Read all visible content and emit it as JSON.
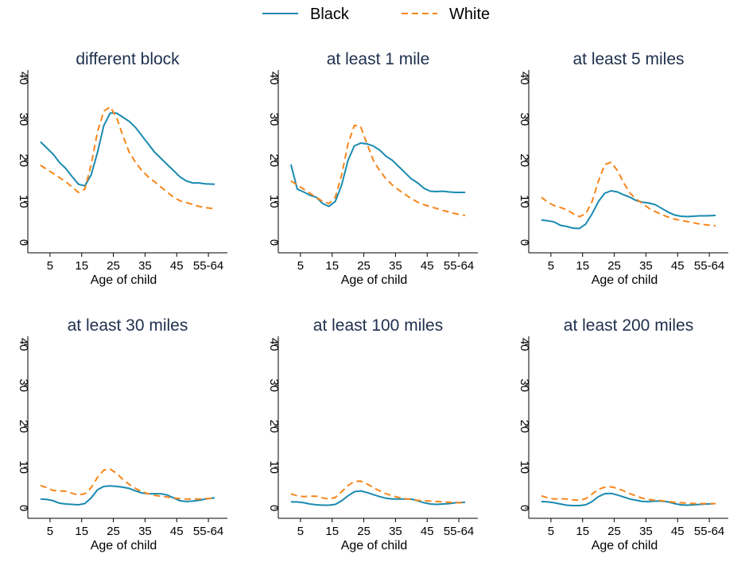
{
  "legend": [
    {
      "name": "Black",
      "color": "#1a8ab0",
      "dashed": false
    },
    {
      "name": "White",
      "color": "#f7861b",
      "dashed": true
    }
  ],
  "chart_data": [
    {
      "type": "line",
      "title": "different block",
      "xlabel": "Age of child",
      "x": [
        2,
        4,
        6,
        8,
        10,
        12,
        14,
        16,
        18,
        20,
        22,
        24,
        26,
        28,
        30,
        32,
        34,
        36,
        38,
        40,
        42,
        44,
        46,
        48,
        50,
        52,
        54,
        57
      ],
      "xlim": [
        -2,
        61
      ],
      "xticks": [
        5,
        15,
        25,
        35,
        45,
        {
          "value": 55,
          "label": "55-64"
        }
      ],
      "ylim": [
        -2.5,
        42
      ],
      "yticks": [
        0,
        10,
        20,
        30,
        40
      ],
      "series": [
        {
          "values": [
            24.5,
            23,
            21.5,
            19.5,
            18,
            16,
            14.2,
            13.8,
            16.5,
            22,
            28.5,
            31.5,
            31.5,
            30.5,
            29.5,
            28,
            26,
            24,
            22,
            20.5,
            19,
            17.5,
            16,
            15,
            14.5,
            14.5,
            14.3,
            14.2
          ]
        },
        {
          "values": [
            18.8,
            17.8,
            16.8,
            15.8,
            14.8,
            13.5,
            12.2,
            13,
            19,
            27,
            32,
            33,
            30.5,
            26,
            22,
            19.5,
            17.5,
            16,
            14.8,
            13.5,
            12.3,
            11,
            10.2,
            9.7,
            9.3,
            8.8,
            8.5,
            8.2
          ]
        }
      ]
    },
    {
      "type": "line",
      "title": "at least 1 mile",
      "xlabel": "Age of child",
      "x": [
        2,
        4,
        6,
        8,
        10,
        12,
        14,
        16,
        18,
        20,
        22,
        24,
        26,
        28,
        30,
        32,
        34,
        36,
        38,
        40,
        42,
        44,
        46,
        48,
        50,
        52,
        54,
        57
      ],
      "xlim": [
        -2,
        61
      ],
      "xticks": [
        5,
        15,
        25,
        35,
        45,
        {
          "value": 55,
          "label": "55-64"
        }
      ],
      "ylim": [
        -2.5,
        42
      ],
      "yticks": [
        0,
        10,
        20,
        30,
        40
      ],
      "series": [
        {
          "values": [
            19,
            13,
            12.3,
            11.5,
            11,
            9.5,
            8.8,
            10,
            14,
            20,
            23.5,
            24.2,
            24,
            23.5,
            22.5,
            21,
            20,
            18.5,
            17,
            15.5,
            14.5,
            13.2,
            12.5,
            12.4,
            12.5,
            12.3,
            12.2,
            12.2
          ]
        },
        {
          "values": [
            15,
            14,
            13,
            12,
            11,
            10,
            9.5,
            11,
            16.5,
            24,
            28.5,
            28.2,
            24,
            20,
            17.5,
            15.5,
            14,
            12.8,
            11.7,
            10.7,
            9.8,
            9.2,
            8.7,
            8.3,
            7.8,
            7.4,
            7,
            6.6
          ]
        }
      ]
    },
    {
      "type": "line",
      "title": "at least 5 miles",
      "xlabel": "Age of child",
      "x": [
        2,
        4,
        6,
        8,
        10,
        12,
        14,
        16,
        18,
        20,
        22,
        24,
        26,
        28,
        30,
        32,
        34,
        36,
        38,
        40,
        42,
        44,
        46,
        48,
        50,
        52,
        54,
        57
      ],
      "xlim": [
        -2,
        61
      ],
      "xticks": [
        5,
        15,
        25,
        35,
        45,
        {
          "value": 55,
          "label": "55-64"
        }
      ],
      "ylim": [
        -2.5,
        42
      ],
      "yticks": [
        0,
        10,
        20,
        30,
        40
      ],
      "series": [
        {
          "values": [
            5.5,
            5.3,
            5,
            4.2,
            3.9,
            3.5,
            3.4,
            4.5,
            7,
            10,
            12,
            12.6,
            12.3,
            11.6,
            11,
            10.2,
            9.8,
            9.6,
            9.2,
            8.3,
            7.4,
            6.7,
            6.4,
            6.3,
            6.4,
            6.5,
            6.5,
            6.6
          ]
        },
        {
          "values": [
            11,
            9.8,
            9,
            8.5,
            8,
            7,
            6.3,
            7,
            10,
            15,
            19,
            19.5,
            17.5,
            14.5,
            12,
            10.5,
            9.5,
            8.3,
            7.5,
            6.8,
            6.2,
            5.7,
            5.4,
            5.1,
            4.8,
            4.5,
            4.3,
            4.1
          ]
        }
      ]
    },
    {
      "type": "line",
      "title": "at least 30 miles",
      "xlabel": "Age of child",
      "x": [
        2,
        4,
        6,
        8,
        10,
        12,
        14,
        16,
        18,
        20,
        22,
        24,
        26,
        28,
        30,
        32,
        34,
        36,
        38,
        40,
        42,
        44,
        46,
        48,
        50,
        52,
        54,
        57
      ],
      "xlim": [
        -2,
        61
      ],
      "xticks": [
        5,
        15,
        25,
        35,
        45,
        {
          "value": 55,
          "label": "55-64"
        }
      ],
      "ylim": [
        -2.5,
        42
      ],
      "yticks": [
        0,
        10,
        20,
        30,
        40
      ],
      "series": [
        {
          "values": [
            2.2,
            2.1,
            1.8,
            1.2,
            1,
            0.9,
            0.8,
            1.1,
            2.5,
            4.5,
            5.3,
            5.4,
            5.3,
            5.1,
            4.8,
            4.2,
            3.7,
            3.5,
            3.5,
            3.5,
            3.2,
            2.5,
            1.8,
            1.6,
            1.7,
            1.9,
            2.2,
            2.5
          ]
        },
        {
          "values": [
            5.5,
            5,
            4.3,
            4.2,
            4.1,
            3.6,
            3.2,
            3.5,
            5,
            7.5,
            9.3,
            9.5,
            8.5,
            7,
            5.8,
            4.8,
            4,
            3.5,
            3.1,
            2.9,
            2.7,
            2.5,
            2.3,
            2.2,
            2.2,
            2.2,
            2.3,
            2.4
          ]
        }
      ]
    },
    {
      "type": "line",
      "title": "at least 100 miles",
      "xlabel": "Age of child",
      "x": [
        2,
        4,
        6,
        8,
        10,
        12,
        14,
        16,
        18,
        20,
        22,
        24,
        26,
        28,
        30,
        32,
        34,
        36,
        38,
        40,
        42,
        44,
        46,
        48,
        50,
        52,
        54,
        57
      ],
      "xlim": [
        -2,
        61
      ],
      "xticks": [
        5,
        15,
        25,
        35,
        45,
        {
          "value": 55,
          "label": "55-64"
        }
      ],
      "ylim": [
        -2.5,
        42
      ],
      "yticks": [
        0,
        10,
        20,
        30,
        40
      ],
      "series": [
        {
          "values": [
            1.5,
            1.5,
            1.3,
            1,
            0.8,
            0.7,
            0.7,
            0.9,
            1.8,
            3,
            4,
            4.2,
            3.8,
            3.3,
            2.8,
            2.4,
            2.2,
            2.2,
            2.2,
            2.2,
            1.8,
            1.3,
            1,
            0.9,
            1,
            1.1,
            1.3,
            1.4
          ]
        },
        {
          "values": [
            3.5,
            3,
            2.8,
            2.9,
            2.9,
            2.5,
            2.2,
            2.6,
            4,
            5.5,
            6.5,
            6.6,
            5.9,
            5,
            4.2,
            3.5,
            3,
            2.6,
            2.3,
            2.1,
            1.9,
            1.8,
            1.7,
            1.6,
            1.5,
            1.4,
            1.3,
            1.3
          ]
        }
      ]
    },
    {
      "type": "line",
      "title": "at least 200 miles",
      "xlabel": "Age of child",
      "x": [
        2,
        4,
        6,
        8,
        10,
        12,
        14,
        16,
        18,
        20,
        22,
        24,
        26,
        28,
        30,
        32,
        34,
        36,
        38,
        40,
        42,
        44,
        46,
        48,
        50,
        52,
        54,
        57
      ],
      "xlim": [
        -2,
        61
      ],
      "xticks": [
        5,
        15,
        25,
        35,
        45,
        {
          "value": 55,
          "label": "55-64"
        }
      ],
      "ylim": [
        -2.5,
        42
      ],
      "yticks": [
        0,
        10,
        20,
        30,
        40
      ],
      "series": [
        {
          "values": [
            1.6,
            1.5,
            1.3,
            1,
            0.7,
            0.6,
            0.6,
            0.8,
            1.6,
            2.8,
            3.5,
            3.6,
            3.2,
            2.7,
            2.2,
            1.9,
            1.6,
            1.6,
            1.7,
            1.7,
            1.5,
            1.1,
            0.8,
            0.7,
            0.8,
            0.9,
            1,
            1.1
          ]
        },
        {
          "values": [
            3,
            2.5,
            2.2,
            2.3,
            2.2,
            2,
            1.9,
            2.3,
            3.4,
            4.6,
            5.1,
            5.2,
            4.8,
            4.2,
            3.5,
            2.9,
            2.4,
            2.1,
            1.9,
            1.8,
            1.6,
            1.4,
            1.3,
            1.2,
            1.1,
            1.1,
            1.1,
            1.1
          ]
        }
      ]
    }
  ]
}
